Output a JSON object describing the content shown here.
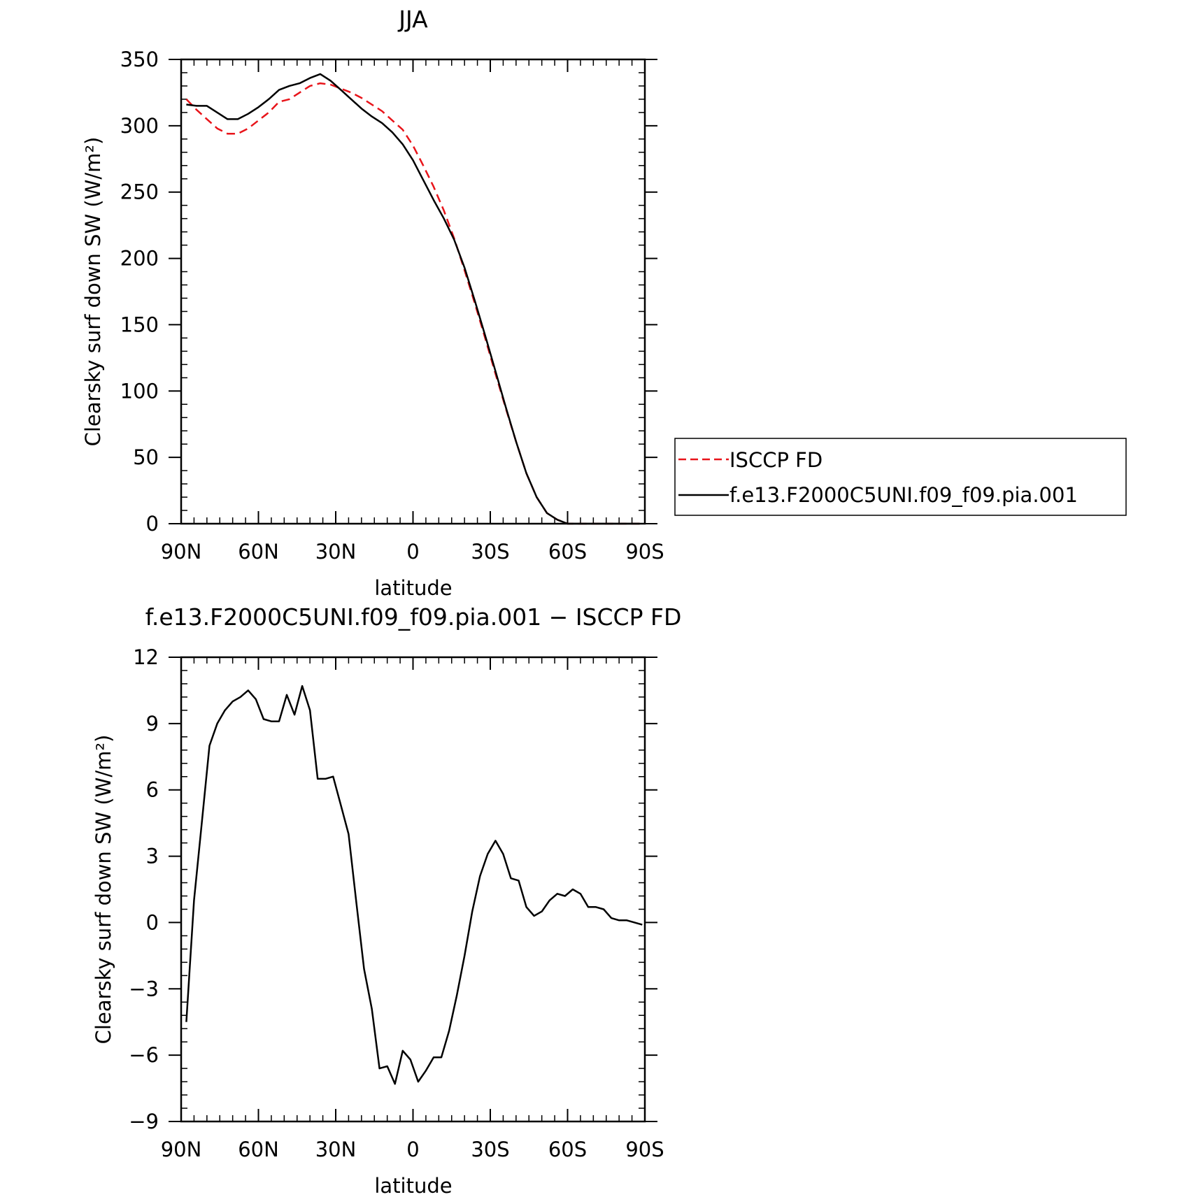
{
  "chart_data": [
    {
      "type": "line",
      "title": "JJA",
      "xlabel": "latitude",
      "ylabel": "Clearsky surf down SW (W/m²)",
      "xlim": [
        90,
        -90
      ],
      "ylim": [
        0,
        350
      ],
      "x_ticks": [
        90,
        60,
        30,
        0,
        -30,
        -60,
        -90
      ],
      "x_tick_labels": [
        "90N",
        "60N",
        "30N",
        "0",
        "30S",
        "60S",
        "90S"
      ],
      "y_ticks": [
        0,
        50,
        100,
        150,
        200,
        250,
        300,
        350
      ],
      "y_tick_labels": [
        "0",
        "50",
        "100",
        "150",
        "200",
        "250",
        "300",
        "350"
      ],
      "legend_position": "right",
      "series": [
        {
          "name": "ISCCP FD",
          "color": "#e8141a",
          "dash": "dashed",
          "x": [
            88,
            84,
            80,
            76,
            72,
            68,
            64,
            60,
            56,
            52,
            48,
            44,
            40,
            36,
            32,
            28,
            24,
            20,
            16,
            12,
            8,
            4,
            0,
            -4,
            -8,
            -12,
            -16,
            -20,
            -24,
            -28,
            -32,
            -36,
            -40,
            -44,
            -48,
            -52,
            -56,
            -60,
            -64,
            -68,
            -72,
            -76,
            -80,
            -84,
            -88
          ],
          "y": [
            320,
            312,
            305,
            298,
            294,
            294,
            298,
            304,
            310,
            318,
            320,
            325,
            330,
            332,
            331,
            328,
            325,
            321,
            316,
            311,
            304,
            297,
            285,
            270,
            254,
            236,
            215,
            191,
            166,
            140,
            113,
            87,
            62,
            38,
            20,
            8,
            3,
            0,
            0,
            0,
            0,
            0,
            0,
            0,
            0
          ]
        },
        {
          "name": "f.e13.F2000C5UNI.f09_f09.pia.001",
          "color": "#000000",
          "dash": "solid",
          "x": [
            88,
            84,
            80,
            76,
            72,
            68,
            64,
            60,
            56,
            52,
            48,
            44,
            40,
            36,
            32,
            28,
            24,
            20,
            16,
            12,
            8,
            4,
            0,
            -4,
            -8,
            -12,
            -16,
            -20,
            -24,
            -28,
            -32,
            -36,
            -40,
            -44,
            -48,
            -52,
            -56,
            -60,
            -64,
            -68,
            -72,
            -76,
            -80,
            -84,
            -88
          ],
          "y": [
            316,
            315,
            315,
            310,
            305,
            305,
            309,
            314,
            320,
            327,
            330,
            332,
            336,
            339,
            334,
            327,
            320,
            313,
            307,
            302,
            295,
            286,
            274,
            259,
            244,
            230,
            214,
            193,
            168,
            142,
            115,
            88,
            62,
            38,
            20,
            8,
            3,
            0,
            0,
            0,
            0,
            0,
            0,
            0,
            0
          ]
        }
      ]
    },
    {
      "type": "line",
      "title": "f.e13.F2000C5UNI.f09_f09.pia.001 − ISCCP FD",
      "xlabel": "latitude",
      "ylabel": "Clearsky surf down SW (W/m²)",
      "xlim": [
        90,
        -90
      ],
      "ylim": [
        -9,
        12
      ],
      "x_ticks": [
        90,
        60,
        30,
        0,
        -30,
        -60,
        -90
      ],
      "x_tick_labels": [
        "90N",
        "60N",
        "30N",
        "0",
        "30S",
        "60S",
        "90S"
      ],
      "y_ticks": [
        -9,
        -6,
        -3,
        0,
        3,
        6,
        9,
        12
      ],
      "y_tick_labels": [
        "−9",
        "−6",
        "−3",
        "0",
        "3",
        "6",
        "9",
        "12"
      ],
      "series": [
        {
          "color": "#000000",
          "dash": "solid",
          "x": [
            88,
            85,
            82,
            79,
            76,
            73,
            70,
            67,
            64,
            61,
            58,
            55,
            52,
            49,
            46,
            43,
            40,
            37,
            34,
            31,
            28,
            25,
            22,
            19,
            16,
            13,
            10,
            7,
            4,
            1,
            -2,
            -5,
            -8,
            -11,
            -14,
            -17,
            -20,
            -23,
            -26,
            -29,
            -32,
            -35,
            -38,
            -41,
            -44,
            -47,
            -50,
            -53,
            -56,
            -59,
            -62,
            -65,
            -68,
            -71,
            -74,
            -77,
            -80,
            -83,
            -86,
            -89
          ],
          "y": [
            -4.5,
            1.0,
            4.5,
            8.0,
            9.0,
            9.6,
            10.0,
            10.2,
            10.5,
            10.1,
            9.2,
            9.1,
            9.1,
            10.3,
            9.4,
            10.7,
            9.6,
            6.5,
            6.5,
            6.6,
            5.3,
            4.0,
            0.9,
            -2.1,
            -3.9,
            -6.6,
            -6.5,
            -7.3,
            -5.8,
            -6.2,
            -7.2,
            -6.7,
            -6.1,
            -6.1,
            -4.9,
            -3.3,
            -1.5,
            0.5,
            2.1,
            3.1,
            3.7,
            3.1,
            2.0,
            1.9,
            0.7,
            0.3,
            0.5,
            1.0,
            1.3,
            1.2,
            1.5,
            1.3,
            0.7,
            0.7,
            0.6,
            0.2,
            0.1,
            0.1,
            0.0,
            -0.1
          ]
        }
      ]
    }
  ]
}
